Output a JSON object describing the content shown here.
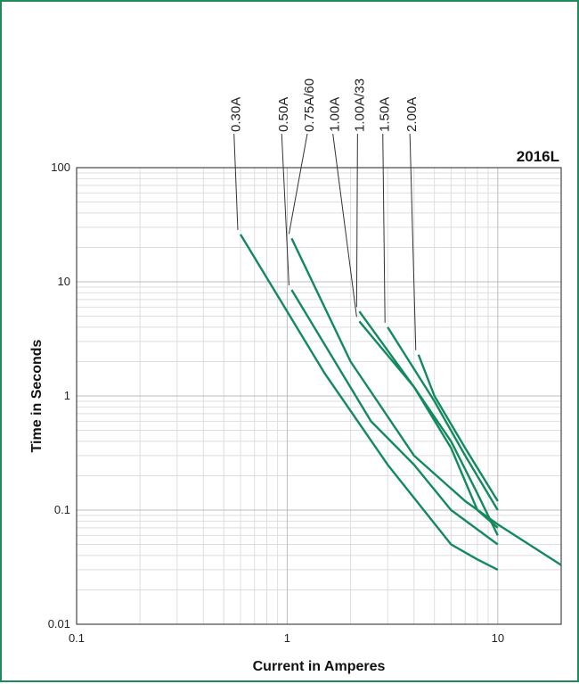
{
  "colors": {
    "frame": "#1f8a5a",
    "curve": "#138a5e",
    "grid_major": "#bdbdbd",
    "grid_minor": "#dedede",
    "leader": "#333333",
    "axis": "#222222"
  },
  "chart_data": {
    "type": "line",
    "title": "2016L",
    "xlabel": "Current in Amperes",
    "ylabel": "Time in Seconds",
    "xscale": "log",
    "yscale": "log",
    "xlim": [
      0.1,
      20
    ],
    "ylim": [
      0.01,
      100
    ],
    "grid": true,
    "xticks": [
      {
        "value": 0.1,
        "label": "0.1"
      },
      {
        "value": 1,
        "label": "1"
      },
      {
        "value": 10,
        "label": "10"
      }
    ],
    "yticks": [
      {
        "value": 0.01,
        "label": "0.01"
      },
      {
        "value": 0.1,
        "label": "0.1"
      },
      {
        "value": 1,
        "label": "1"
      },
      {
        "value": 10,
        "label": "10"
      },
      {
        "value": 100,
        "label": "100"
      }
    ],
    "series": [
      {
        "name": "0.30A",
        "label_x": 0.57,
        "x": [
          0.6,
          1.5,
          3,
          6,
          8,
          10
        ],
        "y": [
          26,
          1.6,
          0.25,
          0.05,
          0.037,
          0.03
        ]
      },
      {
        "name": "0.50A",
        "label_x": 0.96,
        "x": [
          1.05,
          2.5,
          4,
          6,
          10
        ],
        "y": [
          8.5,
          0.6,
          0.25,
          0.1,
          0.05
        ]
      },
      {
        "name": "0.75A/60",
        "label_x": 1.27,
        "x": [
          1.05,
          2,
          4,
          7,
          10,
          20
        ],
        "y": [
          24,
          2,
          0.3,
          0.12,
          0.075,
          0.033
        ]
      },
      {
        "name": "1.00A",
        "label_x": 1.68,
        "x": [
          2.2,
          4,
          6,
          8,
          10
        ],
        "y": [
          4.5,
          1.2,
          0.35,
          0.1,
          0.07
        ]
      },
      {
        "name": "1.00A/33",
        "label_x": 2.2,
        "x": [
          2.2,
          4,
          6,
          8,
          10
        ],
        "y": [
          5.5,
          1.2,
          0.4,
          0.14,
          0.06
        ]
      },
      {
        "name": "1.50A",
        "label_x": 2.9,
        "x": [
          3,
          5,
          7,
          10
        ],
        "y": [
          4,
          0.9,
          0.3,
          0.1
        ]
      },
      {
        "name": "2.00A",
        "label_x": 3.9,
        "x": [
          4.2,
          5,
          7,
          10
        ],
        "y": [
          2.3,
          1,
          0.35,
          0.12
        ]
      }
    ]
  }
}
